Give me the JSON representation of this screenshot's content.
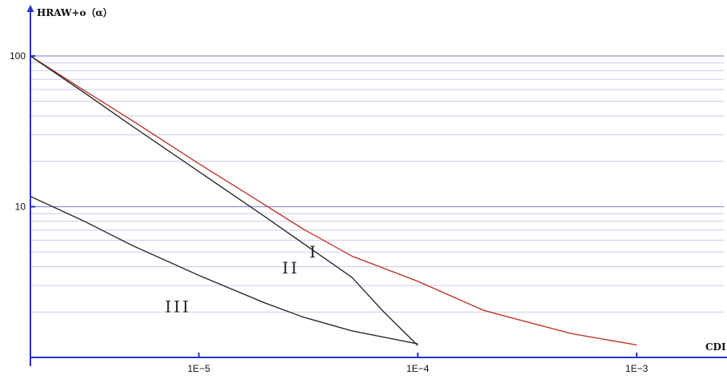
{
  "chart_data": {
    "type": "line",
    "title": "",
    "ylabel": "HRAW+o（α）",
    "xlabel": "CDI",
    "x_scale": "log",
    "y_scale": "log",
    "xlim": [
      1.7e-06,
      0.0025
    ],
    "ylim": [
      1.0,
      100
    ],
    "x_ticks": [
      {
        "value": 1e-05,
        "label": "1E−5"
      },
      {
        "value": 0.0001,
        "label": "1E−4"
      },
      {
        "value": 0.001,
        "label": "1E−3"
      }
    ],
    "y_ticks": [
      {
        "value": 100,
        "label": "100"
      },
      {
        "value": 10,
        "label": "10"
      }
    ],
    "grid": true,
    "legend": "none",
    "series": [
      {
        "name": "I",
        "color": "#c0392b",
        "x": [
          1.7e-06,
          3e-06,
          5e-06,
          1e-05,
          2e-05,
          3e-05,
          5e-05,
          0.0001,
          0.0002,
          0.0005,
          0.001
        ],
        "y": [
          100,
          59,
          37,
          19.3,
          10.3,
          7.1,
          4.7,
          3.2,
          2.05,
          1.44,
          1.21
        ]
      },
      {
        "name": "II",
        "color": "#2b2b2b",
        "x": [
          1.7e-06,
          3e-06,
          5e-06,
          1e-05,
          2e-05,
          3e-05,
          5e-05,
          7e-05,
          0.0001
        ],
        "y": [
          100,
          57,
          34,
          17.1,
          8.6,
          5.7,
          3.4,
          2.0,
          1.2
        ]
      },
      {
        "name": "III",
        "color": "#2b2b2b",
        "x": [
          1.7e-06,
          3e-06,
          5e-06,
          1e-05,
          2e-05,
          3e-05,
          5e-05,
          0.0001
        ],
        "y": [
          11.7,
          8.0,
          5.5,
          3.5,
          2.3,
          1.85,
          1.5,
          1.23
        ]
      }
    ],
    "annotations": [
      {
        "text": "I",
        "x": 3.2e-05,
        "y": 4.6
      },
      {
        "text": "II",
        "x": 2.4e-05,
        "y": 3.6
      },
      {
        "text": "III",
        "x": 7e-06,
        "y": 2.0
      }
    ]
  }
}
